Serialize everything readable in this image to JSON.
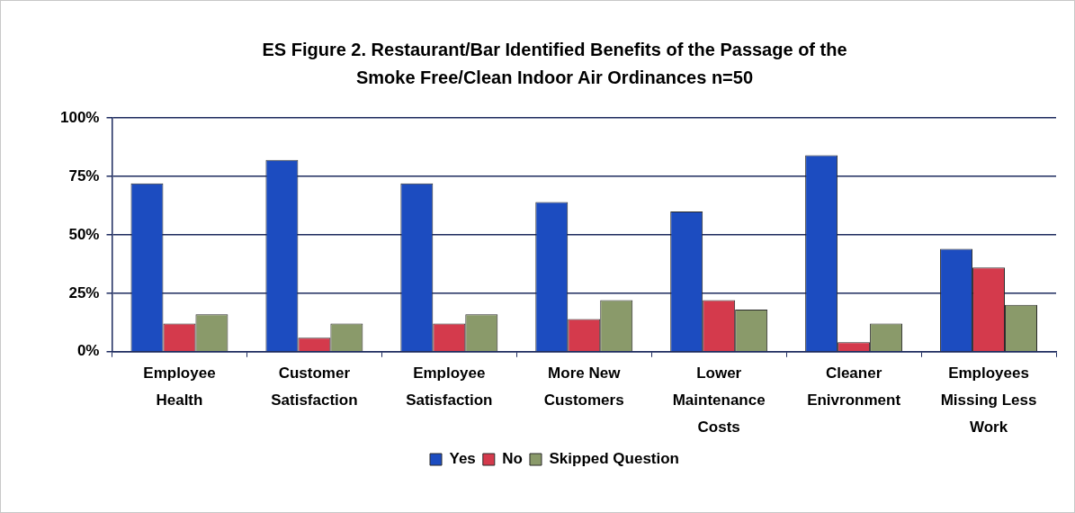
{
  "chart_data": {
    "type": "bar",
    "title": "ES Figure 2. Restaurant/Bar Identified Benefits of the Passage of the Smoke Free/Clean Indoor Air Ordinances n=50",
    "categories": [
      "Employee Health",
      "Customer Satisfaction",
      "Employee Satisfaction",
      "More New Customers",
      "Lower Maintenance Costs",
      "Cleaner Enivronment",
      "Employees Missing Less Work"
    ],
    "series": [
      {
        "name": "Yes",
        "color": "#1c4cc0",
        "values": [
          72,
          82,
          72,
          64,
          60,
          84,
          44
        ]
      },
      {
        "name": "No",
        "color": "#d43a4c",
        "values": [
          12,
          6,
          12,
          14,
          22,
          4,
          36
        ]
      },
      {
        "name": "Skipped Question",
        "color": "#8a9a6a",
        "values": [
          16,
          12,
          16,
          22,
          18,
          12,
          20
        ]
      }
    ],
    "ylim": [
      0,
      100
    ],
    "yticks": [
      {
        "value": 0,
        "label": "0%"
      },
      {
        "value": 25,
        "label": "25%"
      },
      {
        "value": 50,
        "label": "50%"
      },
      {
        "value": 75,
        "label": "75%"
      },
      {
        "value": 100,
        "label": "100%"
      }
    ],
    "grid": "y",
    "legend": "bottom"
  }
}
